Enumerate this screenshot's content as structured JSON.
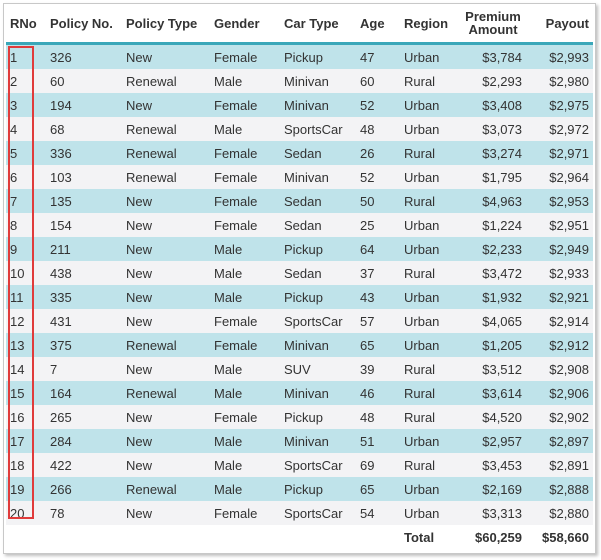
{
  "columns": {
    "rno": "RNo",
    "policy_no": "Policy No.",
    "policy_type": "Policy Type",
    "gender": "Gender",
    "car_type": "Car Type",
    "age": "Age",
    "region": "Region",
    "premium_amount": "Premium Amount",
    "payout": "Payout"
  },
  "rows": [
    {
      "rno": "1",
      "policy_no": "326",
      "policy_type": "New",
      "gender": "Female",
      "car_type": "Pickup",
      "age": "47",
      "region": "Urban",
      "premium": "$3,784",
      "payout": "$2,993"
    },
    {
      "rno": "2",
      "policy_no": "60",
      "policy_type": "Renewal",
      "gender": "Male",
      "car_type": "Minivan",
      "age": "60",
      "region": "Rural",
      "premium": "$2,293",
      "payout": "$2,980"
    },
    {
      "rno": "3",
      "policy_no": "194",
      "policy_type": "New",
      "gender": "Female",
      "car_type": "Minivan",
      "age": "52",
      "region": "Urban",
      "premium": "$3,408",
      "payout": "$2,975"
    },
    {
      "rno": "4",
      "policy_no": "68",
      "policy_type": "Renewal",
      "gender": "Male",
      "car_type": "SportsCar",
      "age": "48",
      "region": "Urban",
      "premium": "$3,073",
      "payout": "$2,972"
    },
    {
      "rno": "5",
      "policy_no": "336",
      "policy_type": "Renewal",
      "gender": "Female",
      "car_type": "Sedan",
      "age": "26",
      "region": "Rural",
      "premium": "$3,274",
      "payout": "$2,971"
    },
    {
      "rno": "6",
      "policy_no": "103",
      "policy_type": "Renewal",
      "gender": "Female",
      "car_type": "Minivan",
      "age": "52",
      "region": "Urban",
      "premium": "$1,795",
      "payout": "$2,964"
    },
    {
      "rno": "7",
      "policy_no": "135",
      "policy_type": "New",
      "gender": "Female",
      "car_type": "Sedan",
      "age": "50",
      "region": "Rural",
      "premium": "$4,963",
      "payout": "$2,953"
    },
    {
      "rno": "8",
      "policy_no": "154",
      "policy_type": "New",
      "gender": "Female",
      "car_type": "Sedan",
      "age": "25",
      "region": "Urban",
      "premium": "$1,224",
      "payout": "$2,951"
    },
    {
      "rno": "9",
      "policy_no": "211",
      "policy_type": "New",
      "gender": "Male",
      "car_type": "Pickup",
      "age": "64",
      "region": "Urban",
      "premium": "$2,233",
      "payout": "$2,949"
    },
    {
      "rno": "10",
      "policy_no": "438",
      "policy_type": "New",
      "gender": "Male",
      "car_type": "Sedan",
      "age": "37",
      "region": "Rural",
      "premium": "$3,472",
      "payout": "$2,933"
    },
    {
      "rno": "11",
      "policy_no": "335",
      "policy_type": "New",
      "gender": "Male",
      "car_type": "Pickup",
      "age": "43",
      "region": "Urban",
      "premium": "$1,932",
      "payout": "$2,921"
    },
    {
      "rno": "12",
      "policy_no": "431",
      "policy_type": "New",
      "gender": "Female",
      "car_type": "SportsCar",
      "age": "57",
      "region": "Urban",
      "premium": "$4,065",
      "payout": "$2,914"
    },
    {
      "rno": "13",
      "policy_no": "375",
      "policy_type": "Renewal",
      "gender": "Female",
      "car_type": "Minivan",
      "age": "65",
      "region": "Urban",
      "premium": "$1,205",
      "payout": "$2,912"
    },
    {
      "rno": "14",
      "policy_no": "7",
      "policy_type": "New",
      "gender": "Male",
      "car_type": "SUV",
      "age": "39",
      "region": "Rural",
      "premium": "$3,512",
      "payout": "$2,908"
    },
    {
      "rno": "15",
      "policy_no": "164",
      "policy_type": "Renewal",
      "gender": "Male",
      "car_type": "Minivan",
      "age": "46",
      "region": "Rural",
      "premium": "$3,614",
      "payout": "$2,906"
    },
    {
      "rno": "16",
      "policy_no": "265",
      "policy_type": "New",
      "gender": "Female",
      "car_type": "Pickup",
      "age": "48",
      "region": "Rural",
      "premium": "$4,520",
      "payout": "$2,902"
    },
    {
      "rno": "17",
      "policy_no": "284",
      "policy_type": "New",
      "gender": "Male",
      "car_type": "Minivan",
      "age": "51",
      "region": "Urban",
      "premium": "$2,957",
      "payout": "$2,897"
    },
    {
      "rno": "18",
      "policy_no": "422",
      "policy_type": "New",
      "gender": "Male",
      "car_type": "SportsCar",
      "age": "69",
      "region": "Rural",
      "premium": "$3,453",
      "payout": "$2,891"
    },
    {
      "rno": "19",
      "policy_no": "266",
      "policy_type": "Renewal",
      "gender": "Male",
      "car_type": "Pickup",
      "age": "65",
      "region": "Urban",
      "premium": "$2,169",
      "payout": "$2,888"
    },
    {
      "rno": "20",
      "policy_no": "78",
      "policy_type": "New",
      "gender": "Female",
      "car_type": "SportsCar",
      "age": "54",
      "region": "Urban",
      "premium": "$3,313",
      "payout": "$2,880"
    }
  ],
  "totals": {
    "label": "Total",
    "premium": "$60,259",
    "payout": "$58,660"
  },
  "colors": {
    "header_accent": "#3aa7b9",
    "row_alt_teal": "#bfe3ea",
    "row_alt_grey": "#f3f3f5",
    "highlight_border": "#e03b3b"
  }
}
